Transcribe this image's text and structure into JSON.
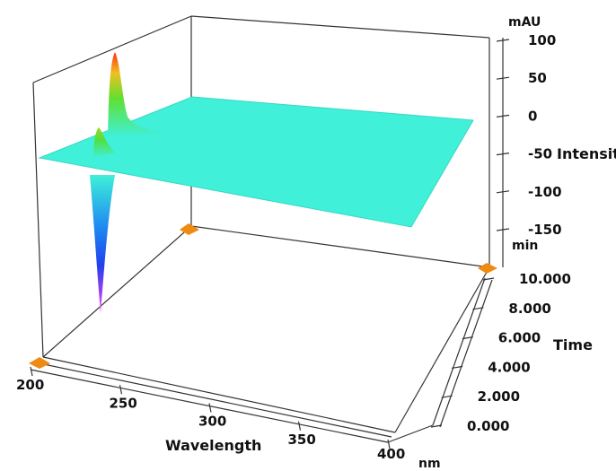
{
  "chart_data": {
    "type": "surface",
    "x_axis": {
      "label": "Wavelength",
      "unit": "nm",
      "ticks": [
        "200",
        "250",
        "300",
        "350",
        "400"
      ],
      "range": [
        200,
        400
      ]
    },
    "y_axis": {
      "label": "Time",
      "unit": "min",
      "ticks": [
        "0.000",
        "2.000",
        "4.000",
        "6.000",
        "8.000",
        "10.000"
      ],
      "range": [
        0,
        10
      ]
    },
    "z_axis": {
      "label": "Intensity",
      "unit": "mAU",
      "ticks": [
        "100",
        "50",
        "0",
        "-50",
        "-100",
        "-150"
      ],
      "range": [
        -150,
        100
      ]
    },
    "surface_baseline_mAU": 0,
    "features": [
      {
        "wavelength_nm": 210,
        "time_min": 0.5,
        "peak_mAU": 25,
        "min_mAU": -150
      },
      {
        "wavelength_nm": 220,
        "time_min": 9.5,
        "peak_mAU": 95
      }
    ],
    "colors": {
      "surface": "#40f0d8",
      "peak": "#ff3010",
      "trough": "#ff60ff",
      "marker": "#f08a10"
    }
  }
}
